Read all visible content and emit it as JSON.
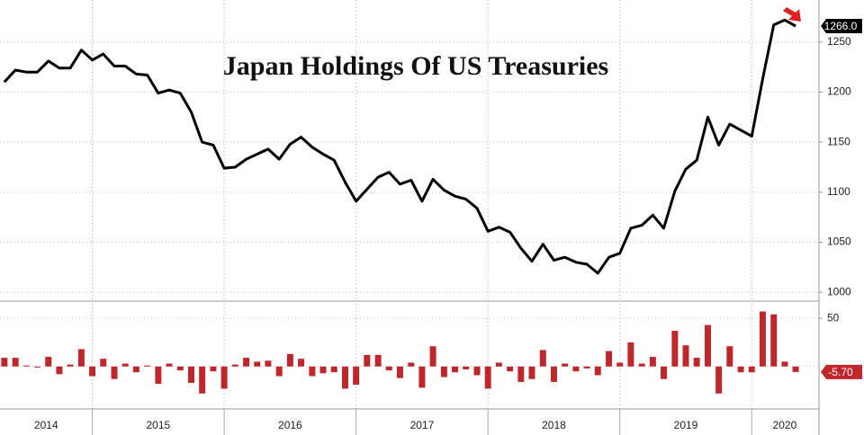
{
  "chart_data": [
    {
      "type": "line",
      "title": "Japan Holdings Of US Treasuries",
      "color": "#000000",
      "x": [
        2014.333,
        2014.417,
        2014.5,
        2014.583,
        2014.667,
        2014.75,
        2014.833,
        2014.917,
        2015,
        2015.083,
        2015.167,
        2015.25,
        2015.333,
        2015.417,
        2015.5,
        2015.583,
        2015.667,
        2015.75,
        2015.833,
        2015.917,
        2016,
        2016.083,
        2016.167,
        2016.25,
        2016.333,
        2016.417,
        2016.5,
        2016.583,
        2016.667,
        2016.75,
        2016.833,
        2016.917,
        2017,
        2017.083,
        2017.167,
        2017.25,
        2017.333,
        2017.417,
        2017.5,
        2017.583,
        2017.667,
        2017.75,
        2017.833,
        2017.917,
        2018,
        2018.083,
        2018.167,
        2018.25,
        2018.333,
        2018.417,
        2018.5,
        2018.583,
        2018.667,
        2018.75,
        2018.833,
        2018.917,
        2019,
        2019.083,
        2019.167,
        2019.25,
        2019.333,
        2019.417,
        2019.5,
        2019.583,
        2019.667,
        2019.75,
        2019.833,
        2019.917,
        2020,
        2020.083,
        2020.167,
        2020.25,
        2020.333
      ],
      "values": [
        1210,
        1222,
        1220,
        1220,
        1231,
        1224,
        1224,
        1242,
        1232,
        1238,
        1226,
        1226,
        1218,
        1217,
        1199,
        1202,
        1199,
        1180,
        1150,
        1147,
        1124,
        1125,
        1133,
        1138,
        1143,
        1133,
        1148,
        1155,
        1145,
        1138,
        1132,
        1110,
        1091,
        1103,
        1115,
        1120,
        1108,
        1112,
        1091,
        1113,
        1102,
        1096,
        1093,
        1084,
        1061,
        1065,
        1060,
        1044,
        1031,
        1048,
        1032,
        1035,
        1030,
        1028,
        1019,
        1035,
        1039,
        1064,
        1067,
        1077,
        1064,
        1101,
        1123,
        1132,
        1175,
        1147,
        1168,
        1162,
        1156,
        1213,
        1267,
        1272,
        1266
      ],
      "last_label": "1266.0",
      "xlim": [
        2014.3,
        2020.51
      ],
      "xgrid": [
        2015,
        2016,
        2017,
        2018,
        2019,
        2020
      ],
      "ylim": [
        993,
        1292
      ],
      "yticks": [
        1000,
        1050,
        1100,
        1150,
        1200,
        1250
      ],
      "grid": true
    },
    {
      "type": "bar",
      "color": "#c0272d",
      "x": [
        2014.333,
        2014.417,
        2014.5,
        2014.583,
        2014.667,
        2014.75,
        2014.833,
        2014.917,
        2015,
        2015.083,
        2015.167,
        2015.25,
        2015.333,
        2015.417,
        2015.5,
        2015.583,
        2015.667,
        2015.75,
        2015.833,
        2015.917,
        2016,
        2016.083,
        2016.167,
        2016.25,
        2016.333,
        2016.417,
        2016.5,
        2016.583,
        2016.667,
        2016.75,
        2016.833,
        2016.917,
        2017,
        2017.083,
        2017.167,
        2017.25,
        2017.333,
        2017.417,
        2017.5,
        2017.583,
        2017.667,
        2017.75,
        2017.833,
        2017.917,
        2018,
        2018.083,
        2018.167,
        2018.25,
        2018.333,
        2018.417,
        2018.5,
        2018.583,
        2018.667,
        2018.75,
        2018.833,
        2018.917,
        2019,
        2019.083,
        2019.167,
        2019.25,
        2019.333,
        2019.417,
        2019.5,
        2019.583,
        2019.667,
        2019.75,
        2019.833,
        2019.917,
        2020,
        2020.083,
        2020.167,
        2020.25,
        2020.333
      ],
      "values": [
        9,
        9,
        1,
        -1,
        10,
        -8,
        2,
        18,
        -10,
        8,
        -13,
        3,
        -6,
        1,
        -18,
        3,
        -4,
        -17,
        -28,
        -5,
        -23,
        2,
        9,
        5,
        6,
        -10,
        13,
        8,
        -10,
        -7,
        -6,
        -23,
        -19,
        12,
        12,
        -4,
        -12,
        4,
        -22,
        21,
        -11,
        -6,
        -3,
        -9,
        -23,
        4,
        -5,
        -16,
        -13,
        17,
        -16,
        3,
        -5,
        -2,
        -9,
        16,
        4,
        25,
        3,
        10,
        -13,
        37,
        22,
        9,
        43,
        -28,
        21,
        -6,
        -6,
        57,
        54,
        5,
        -5.7
      ],
      "last_label": "-5.70",
      "xlim": [
        2014.3,
        2020.51
      ],
      "xgrid": [
        2015,
        2016,
        2017,
        2018,
        2019,
        2020
      ],
      "xticks": [
        {
          "value": 2014.65,
          "label": "2014"
        },
        {
          "value": 2015.5,
          "label": "2015"
        },
        {
          "value": 2016.5,
          "label": "2016"
        },
        {
          "value": 2017.5,
          "label": "2017"
        },
        {
          "value": 2018.5,
          "label": "2018"
        },
        {
          "value": 2019.5,
          "label": "2019"
        },
        {
          "value": 2020.25,
          "label": "2020"
        }
      ],
      "ylim": [
        -44,
        65
      ],
      "yticks": [
        50
      ],
      "grid": true
    }
  ]
}
